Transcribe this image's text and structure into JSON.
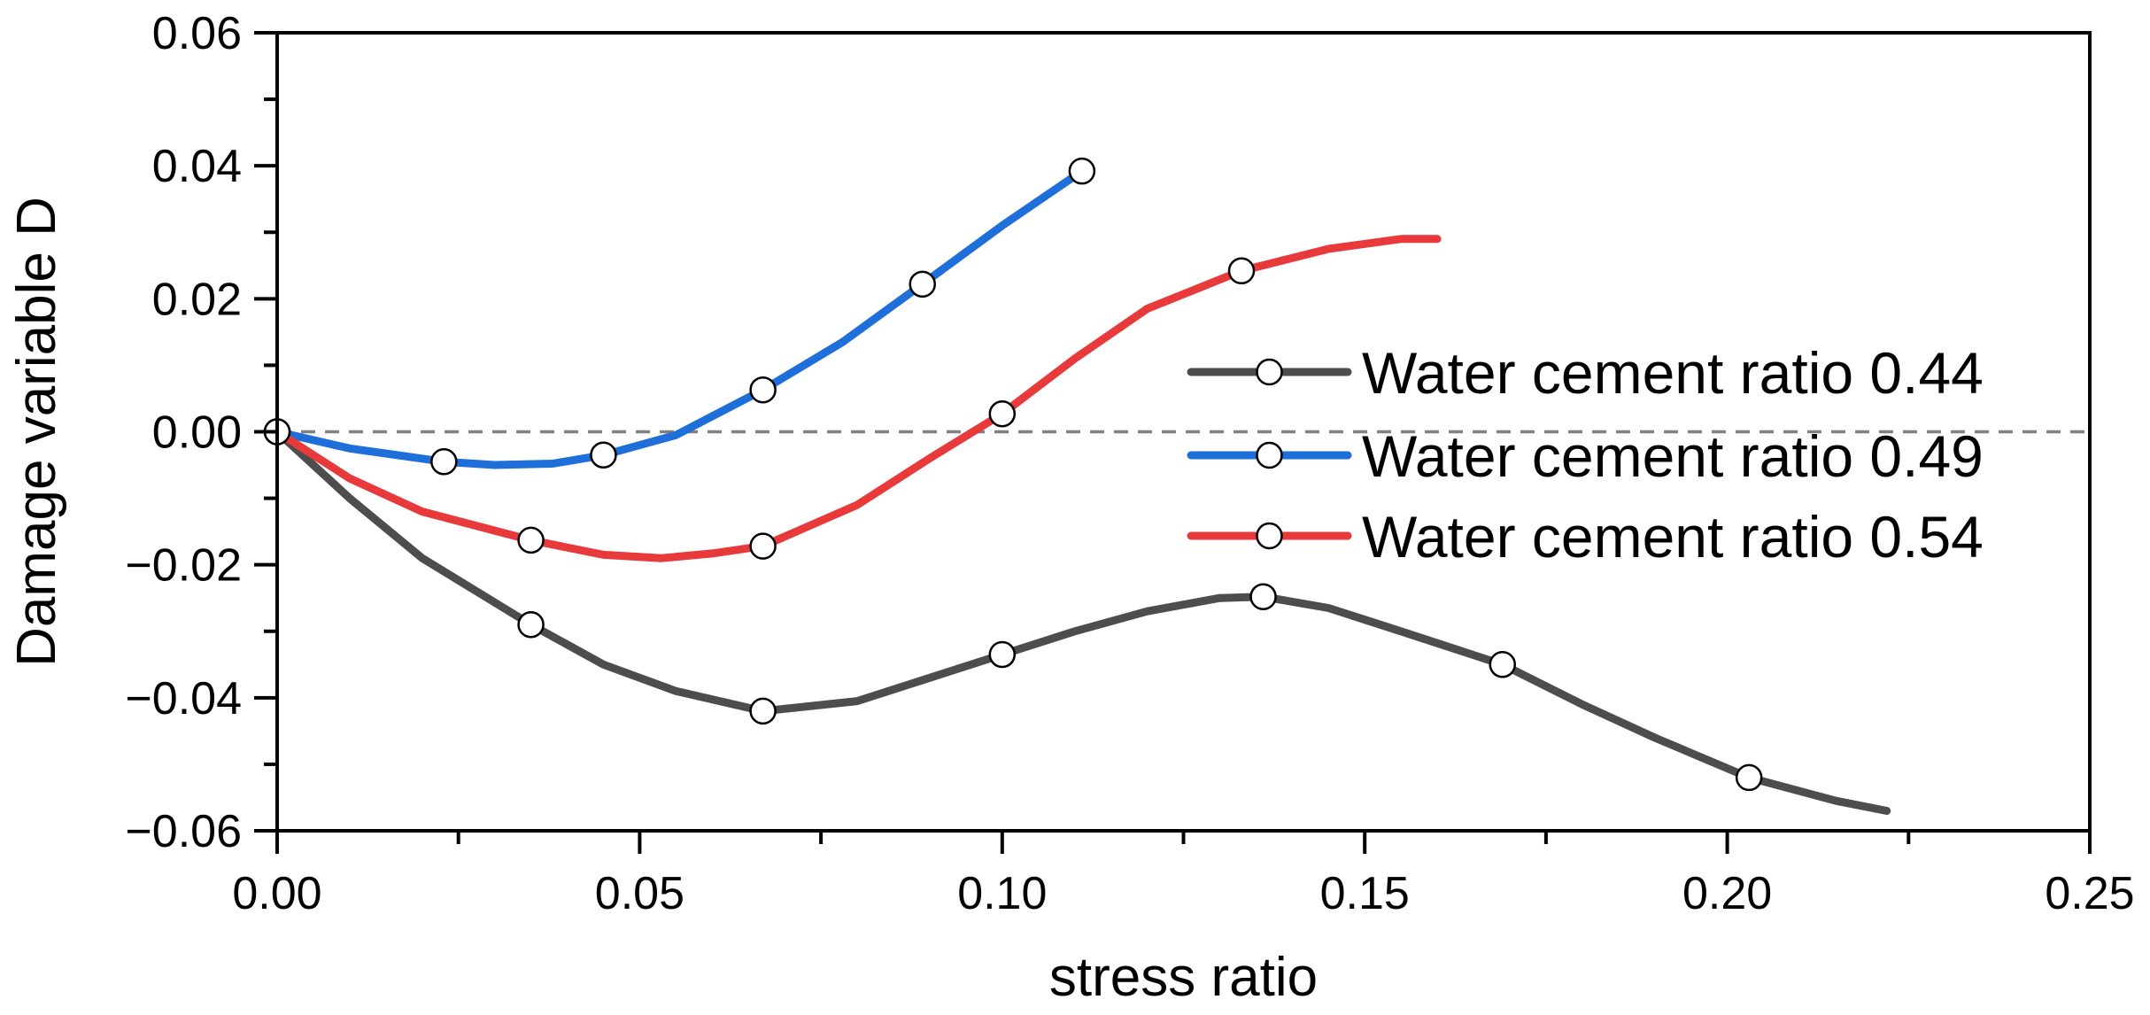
{
  "chart_data": {
    "type": "line",
    "title": "",
    "xlabel": "stress ratio",
    "ylabel": "Damage variable D",
    "xlim": [
      0,
      0.25
    ],
    "ylim": [
      -0.06,
      0.06
    ],
    "xticks": [
      0.0,
      0.05,
      0.1,
      0.15,
      0.2,
      0.25
    ],
    "xtick_labels": [
      "0.00",
      "0.05",
      "0.10",
      "0.15",
      "0.20",
      "0.25"
    ],
    "yticks": [
      0.06,
      0.04,
      0.02,
      0.0,
      -0.02,
      -0.04,
      -0.06
    ],
    "ytick_labels": [
      "0.06",
      "0.04",
      "0.02",
      "0.00",
      "−0.02",
      "−0.04",
      "−0.06"
    ],
    "x_minor_step": 0.025,
    "y_minor_step": 0.01,
    "grid": false,
    "reference_line": {
      "y": 0,
      "style": "dashed",
      "color": "#808080"
    },
    "legend_position": "right",
    "series": [
      {
        "name": "Water cement ratio 0.44",
        "color": "#4d4d4d",
        "x": [
          0.0,
          0.01,
          0.02,
          0.035,
          0.045,
          0.055,
          0.067,
          0.08,
          0.09,
          0.1,
          0.11,
          0.12,
          0.13,
          0.136,
          0.145,
          0.155,
          0.169,
          0.18,
          0.19,
          0.203,
          0.215,
          0.222
        ],
        "y": [
          0.0,
          -0.01,
          -0.019,
          -0.029,
          -0.035,
          -0.039,
          -0.042,
          -0.0405,
          -0.037,
          -0.0335,
          -0.03,
          -0.027,
          -0.025,
          -0.0248,
          -0.0265,
          -0.03,
          -0.035,
          -0.041,
          -0.046,
          -0.052,
          -0.0555,
          -0.057
        ],
        "markers": [
          {
            "x": 0.0,
            "y": 0.0
          },
          {
            "x": 0.035,
            "y": -0.029
          },
          {
            "x": 0.067,
            "y": -0.042
          },
          {
            "x": 0.1,
            "y": -0.0335
          },
          {
            "x": 0.136,
            "y": -0.0248
          },
          {
            "x": 0.169,
            "y": -0.035
          },
          {
            "x": 0.203,
            "y": -0.052
          }
        ]
      },
      {
        "name": "Water cement ratio 0.49",
        "color": "#1e6fd9",
        "x": [
          0.0,
          0.01,
          0.023,
          0.03,
          0.038,
          0.045,
          0.055,
          0.067,
          0.078,
          0.089,
          0.1,
          0.111
        ],
        "y": [
          0.0,
          -0.0025,
          -0.0045,
          -0.005,
          -0.0048,
          -0.0035,
          -0.0005,
          0.0063,
          0.0135,
          0.0222,
          0.031,
          0.0392
        ],
        "markers": [
          {
            "x": 0.0,
            "y": 0.0
          },
          {
            "x": 0.023,
            "y": -0.0045
          },
          {
            "x": 0.045,
            "y": -0.0035
          },
          {
            "x": 0.067,
            "y": 0.0063
          },
          {
            "x": 0.089,
            "y": 0.0222
          },
          {
            "x": 0.111,
            "y": 0.0392
          }
        ]
      },
      {
        "name": "Water cement ratio 0.54",
        "color": "#e8393b",
        "x": [
          0.0,
          0.01,
          0.02,
          0.035,
          0.045,
          0.053,
          0.06,
          0.067,
          0.08,
          0.09,
          0.1,
          0.11,
          0.12,
          0.133,
          0.145,
          0.155,
          0.16
        ],
        "y": [
          0.0,
          -0.007,
          -0.012,
          -0.0163,
          -0.0185,
          -0.019,
          -0.0183,
          -0.0172,
          -0.011,
          -0.004,
          0.0027,
          0.011,
          0.0185,
          0.0242,
          0.0275,
          0.029,
          0.029
        ],
        "markers": [
          {
            "x": 0.0,
            "y": 0.0
          },
          {
            "x": 0.035,
            "y": -0.0163
          },
          {
            "x": 0.067,
            "y": -0.0172
          },
          {
            "x": 0.1,
            "y": 0.0027
          },
          {
            "x": 0.133,
            "y": 0.0242
          }
        ]
      }
    ]
  }
}
